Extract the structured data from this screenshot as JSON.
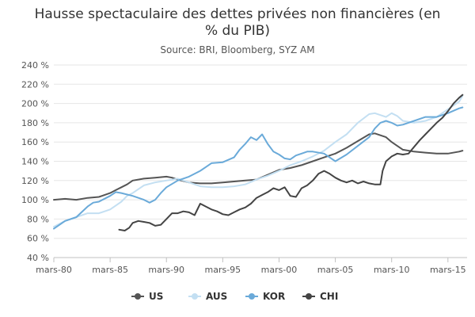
{
  "chart_data": {
    "type": "line",
    "title_lines": [
      "Hausse spectaculaire des dettes privées non financières (en",
      "% du PIB)"
    ],
    "subtitle": "Source: BRI, Bloomberg, SYZ AM",
    "x_start": 1980.0,
    "x_end": 2016.7,
    "x_ticks": [
      {
        "value": 1980,
        "label": "mars-80"
      },
      {
        "value": 1985,
        "label": "mars-85"
      },
      {
        "value": 1990,
        "label": "mars-90"
      },
      {
        "value": 1995,
        "label": "mars-95"
      },
      {
        "value": 2000,
        "label": "mars-00"
      },
      {
        "value": 2005,
        "label": "mars-05"
      },
      {
        "value": 2010,
        "label": "mars-10"
      },
      {
        "value": 2015,
        "label": "mars-15"
      }
    ],
    "y_ticks": [
      {
        "value": 40,
        "label": "40 %"
      },
      {
        "value": 60,
        "label": "60 %"
      },
      {
        "value": 80,
        "label": "80 %"
      },
      {
        "value": 100,
        "label": "100 %"
      },
      {
        "value": 120,
        "label": "120 %"
      },
      {
        "value": 140,
        "label": "140 %"
      },
      {
        "value": 160,
        "label": "160 %"
      },
      {
        "value": 180,
        "label": "180 %"
      },
      {
        "value": 200,
        "label": "200 %"
      },
      {
        "value": 220,
        "label": "220 %"
      },
      {
        "value": 240,
        "label": "240 %"
      }
    ],
    "ylim": [
      40,
      240
    ],
    "legend_position": "bottom-center",
    "grid": "horizontal",
    "series": [
      {
        "name": "US",
        "color": "#555555",
        "points": [
          [
            1980.0,
            100
          ],
          [
            1981.0,
            101
          ],
          [
            1982.0,
            100
          ],
          [
            1983.0,
            102
          ],
          [
            1984.0,
            103
          ],
          [
            1985.0,
            107
          ],
          [
            1985.5,
            110
          ],
          [
            1986.0,
            113
          ],
          [
            1986.5,
            116
          ],
          [
            1987.0,
            120
          ],
          [
            1988.0,
            122
          ],
          [
            1989.0,
            123
          ],
          [
            1990.0,
            124
          ],
          [
            1990.5,
            123
          ],
          [
            1991.0,
            121
          ],
          [
            1992.0,
            118
          ],
          [
            1993.0,
            117
          ],
          [
            1994.0,
            117
          ],
          [
            1995.0,
            118
          ],
          [
            1996.0,
            119
          ],
          [
            1997.0,
            120
          ],
          [
            1998.0,
            121
          ],
          [
            1999.0,
            126
          ],
          [
            2000.0,
            131
          ],
          [
            2001.0,
            133
          ],
          [
            2002.0,
            136
          ],
          [
            2003.0,
            140
          ],
          [
            2004.0,
            144
          ],
          [
            2005.0,
            148
          ],
          [
            2006.0,
            154
          ],
          [
            2007.0,
            161
          ],
          [
            2008.0,
            168
          ],
          [
            2008.5,
            169
          ],
          [
            2009.0,
            167
          ],
          [
            2009.5,
            165
          ],
          [
            2010.0,
            160
          ],
          [
            2010.5,
            156
          ],
          [
            2011.0,
            152
          ],
          [
            2012.0,
            150
          ],
          [
            2013.0,
            149
          ],
          [
            2014.0,
            148
          ],
          [
            2015.0,
            148
          ],
          [
            2016.0,
            150
          ],
          [
            2016.3,
            151
          ]
        ]
      },
      {
        "name": "AUS",
        "color": "#c3dff2",
        "points": [
          [
            1980.0,
            72
          ],
          [
            1981.0,
            78
          ],
          [
            1982.0,
            82
          ],
          [
            1983.0,
            86
          ],
          [
            1984.0,
            86
          ],
          [
            1985.0,
            90
          ],
          [
            1985.5,
            94
          ],
          [
            1986.0,
            98
          ],
          [
            1986.5,
            104
          ],
          [
            1987.0,
            107
          ],
          [
            1988.0,
            115
          ],
          [
            1989.0,
            118
          ],
          [
            1990.0,
            120
          ],
          [
            1991.0,
            122
          ],
          [
            1992.0,
            118
          ],
          [
            1993.0,
            114
          ],
          [
            1994.0,
            113
          ],
          [
            1995.0,
            113
          ],
          [
            1996.0,
            114
          ],
          [
            1997.0,
            116
          ],
          [
            1998.0,
            121
          ],
          [
            1999.0,
            125
          ],
          [
            2000.0,
            130
          ],
          [
            2001.0,
            136
          ],
          [
            2002.0,
            140
          ],
          [
            2003.0,
            145
          ],
          [
            2004.0,
            151
          ],
          [
            2005.0,
            160
          ],
          [
            2006.0,
            168
          ],
          [
            2007.0,
            180
          ],
          [
            2008.0,
            189
          ],
          [
            2008.5,
            190
          ],
          [
            2009.0,
            188
          ],
          [
            2009.5,
            186
          ],
          [
            2010.0,
            190
          ],
          [
            2010.5,
            187
          ],
          [
            2011.0,
            182
          ],
          [
            2012.0,
            180
          ],
          [
            2013.0,
            182
          ],
          [
            2014.0,
            186
          ],
          [
            2015.0,
            194
          ],
          [
            2016.0,
            202
          ],
          [
            2016.3,
            208
          ]
        ]
      },
      {
        "name": "KOR",
        "color": "#6aaad9",
        "points": [
          [
            1980.0,
            70
          ],
          [
            1980.5,
            74
          ],
          [
            1981.0,
            78
          ],
          [
            1982.0,
            82
          ],
          [
            1983.0,
            93
          ],
          [
            1983.5,
            97
          ],
          [
            1984.0,
            98
          ],
          [
            1985.0,
            104
          ],
          [
            1985.5,
            108
          ],
          [
            1986.0,
            107
          ],
          [
            1987.0,
            104
          ],
          [
            1988.0,
            100
          ],
          [
            1988.5,
            97
          ],
          [
            1989.0,
            100
          ],
          [
            1989.5,
            107
          ],
          [
            1990.0,
            113
          ],
          [
            1991.0,
            120
          ],
          [
            1992.0,
            124
          ],
          [
            1993.0,
            130
          ],
          [
            1993.5,
            134
          ],
          [
            1994.0,
            138
          ],
          [
            1995.0,
            139
          ],
          [
            1996.0,
            144
          ],
          [
            1996.5,
            152
          ],
          [
            1997.0,
            158
          ],
          [
            1997.5,
            165
          ],
          [
            1998.0,
            162
          ],
          [
            1998.5,
            168
          ],
          [
            1999.0,
            158
          ],
          [
            1999.5,
            150
          ],
          [
            2000.0,
            147
          ],
          [
            2000.5,
            143
          ],
          [
            2001.0,
            142
          ],
          [
            2001.5,
            146
          ],
          [
            2002.0,
            148
          ],
          [
            2002.5,
            150
          ],
          [
            2003.0,
            150
          ],
          [
            2004.0,
            148
          ],
          [
            2005.0,
            140
          ],
          [
            2006.0,
            147
          ],
          [
            2007.0,
            156
          ],
          [
            2008.0,
            165
          ],
          [
            2008.5,
            174
          ],
          [
            2009.0,
            180
          ],
          [
            2009.5,
            182
          ],
          [
            2010.0,
            180
          ],
          [
            2010.5,
            177
          ],
          [
            2011.0,
            178
          ],
          [
            2012.0,
            182
          ],
          [
            2013.0,
            186
          ],
          [
            2014.0,
            186
          ],
          [
            2015.0,
            190
          ],
          [
            2016.0,
            195
          ],
          [
            2016.3,
            196
          ]
        ]
      },
      {
        "name": "CHI",
        "color": "#444444",
        "points": [
          [
            1985.8,
            69
          ],
          [
            1986.3,
            68
          ],
          [
            1986.7,
            71
          ],
          [
            1987.0,
            76
          ],
          [
            1987.5,
            78
          ],
          [
            1988.0,
            77
          ],
          [
            1988.5,
            76
          ],
          [
            1989.0,
            73
          ],
          [
            1989.5,
            74
          ],
          [
            1990.0,
            80
          ],
          [
            1990.5,
            86
          ],
          [
            1991.0,
            86
          ],
          [
            1991.5,
            88
          ],
          [
            1992.0,
            87
          ],
          [
            1992.5,
            84
          ],
          [
            1993.0,
            96
          ],
          [
            1993.5,
            93
          ],
          [
            1994.0,
            90
          ],
          [
            1994.5,
            88
          ],
          [
            1995.0,
            85
          ],
          [
            1995.5,
            84
          ],
          [
            1996.0,
            87
          ],
          [
            1996.5,
            90
          ],
          [
            1997.0,
            92
          ],
          [
            1997.5,
            96
          ],
          [
            1998.0,
            102
          ],
          [
            1998.5,
            105
          ],
          [
            1999.0,
            108
          ],
          [
            1999.5,
            112
          ],
          [
            2000.0,
            110
          ],
          [
            2000.5,
            113
          ],
          [
            2001.0,
            104
          ],
          [
            2001.5,
            103
          ],
          [
            2002.0,
            112
          ],
          [
            2002.5,
            115
          ],
          [
            2003.0,
            120
          ],
          [
            2003.5,
            127
          ],
          [
            2004.0,
            130
          ],
          [
            2004.5,
            127
          ],
          [
            2005.0,
            123
          ],
          [
            2005.5,
            120
          ],
          [
            2006.0,
            118
          ],
          [
            2006.5,
            120
          ],
          [
            2007.0,
            117
          ],
          [
            2007.5,
            119
          ],
          [
            2008.0,
            117
          ],
          [
            2008.5,
            116
          ],
          [
            2009.0,
            116
          ],
          [
            2009.2,
            130
          ],
          [
            2009.5,
            140
          ],
          [
            2010.0,
            145
          ],
          [
            2010.5,
            148
          ],
          [
            2011.0,
            147
          ],
          [
            2011.5,
            148
          ],
          [
            2012.0,
            155
          ],
          [
            2012.5,
            162
          ],
          [
            2013.0,
            168
          ],
          [
            2013.5,
            174
          ],
          [
            2014.0,
            180
          ],
          [
            2014.5,
            185
          ],
          [
            2015.0,
            192
          ],
          [
            2015.5,
            200
          ],
          [
            2016.0,
            206
          ],
          [
            2016.3,
            209
          ]
        ]
      }
    ]
  }
}
